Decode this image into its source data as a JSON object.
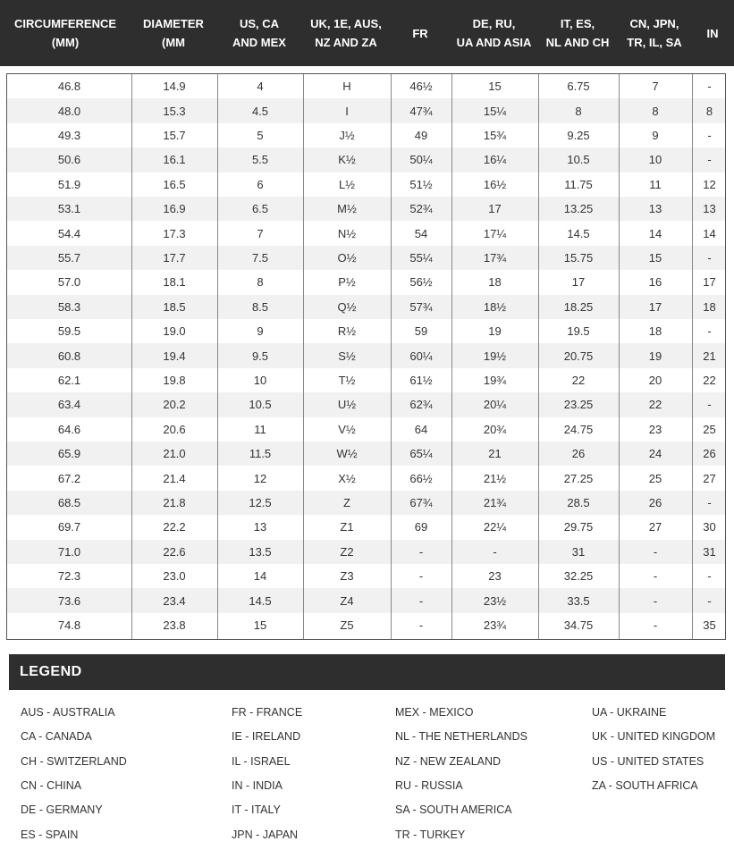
{
  "headers": [
    "CIRCUMFERENCE\n(MM)",
    "DIAMETER\n(MM",
    "US, CA\nAND MEX",
    "UK, 1E, AUS,\nNZ AND ZA",
    "FR",
    "DE, RU,\nUA AND ASIA",
    "IT, ES,\nNL AND CH",
    "CN, JPN,\nTR, IL, SA",
    "IN"
  ],
  "rows": [
    [
      "46.8",
      "14.9",
      "4",
      "H",
      "46½",
      "15",
      "6.75",
      "7",
      "-"
    ],
    [
      "48.0",
      "15.3",
      "4.5",
      "I",
      "47¾",
      "15¼",
      "8",
      "8",
      "8"
    ],
    [
      "49.3",
      "15.7",
      "5",
      "J½",
      "49",
      "15¾",
      "9.25",
      "9",
      "-"
    ],
    [
      "50.6",
      "16.1",
      "5.5",
      "K½",
      "50¼",
      "16¼",
      "10.5",
      "10",
      "-"
    ],
    [
      "51.9",
      "16.5",
      "6",
      "L½",
      "51½",
      "16½",
      "11.75",
      "11",
      "12"
    ],
    [
      "53.1",
      "16.9",
      "6.5",
      "M½",
      "52¾",
      "17",
      "13.25",
      "13",
      "13"
    ],
    [
      "54.4",
      "17.3",
      "7",
      "N½",
      "54",
      "17¼",
      "14.5",
      "14",
      "14"
    ],
    [
      "55.7",
      "17.7",
      "7.5",
      "O½",
      "55¼",
      "17¾",
      "15.75",
      "15",
      "-"
    ],
    [
      "57.0",
      "18.1",
      "8",
      "P½",
      "56½",
      "18",
      "17",
      "16",
      "17"
    ],
    [
      "58.3",
      "18.5",
      "8.5",
      "Q½",
      "57¾",
      "18½",
      "18.25",
      "17",
      "18"
    ],
    [
      "59.5",
      "19.0",
      "9",
      "R½",
      "59",
      "19",
      "19.5",
      "18",
      "-"
    ],
    [
      "60.8",
      "19.4",
      "9.5",
      "S½",
      "60¼",
      "19½",
      "20.75",
      "19",
      "21"
    ],
    [
      "62.1",
      "19.8",
      "10",
      "T½",
      "61½",
      "19¾",
      "22",
      "20",
      "22"
    ],
    [
      "63.4",
      "20.2",
      "10.5",
      "U½",
      "62¾",
      "20¼",
      "23.25",
      "22",
      "-"
    ],
    [
      "64.6",
      "20.6",
      "11",
      "V½",
      "64",
      "20¾",
      "24.75",
      "23",
      "25"
    ],
    [
      "65.9",
      "21.0",
      "11.5",
      "W½",
      "65¼",
      "21",
      "26",
      "24",
      "26"
    ],
    [
      "67.2",
      "21.4",
      "12",
      "X½",
      "66½",
      "21½",
      "27.25",
      "25",
      "27"
    ],
    [
      "68.5",
      "21.8",
      "12.5",
      "Z",
      "67¾",
      "21¾",
      "28.5",
      "26",
      "-"
    ],
    [
      "69.7",
      "22.2",
      "13",
      "Z1",
      "69",
      "22¼",
      "29.75",
      "27",
      "30"
    ],
    [
      "71.0",
      "22.6",
      "13.5",
      "Z2",
      "-",
      "-",
      "31",
      "-",
      "31"
    ],
    [
      "72.3",
      "23.0",
      "14",
      "Z3",
      "-",
      "23",
      "32.25",
      "-",
      "-"
    ],
    [
      "73.6",
      "23.4",
      "14.5",
      "Z4",
      "-",
      "23½",
      "33.5",
      "-",
      "-"
    ],
    [
      "74.8",
      "23.8",
      "15",
      "Z5",
      "-",
      "23¾",
      "34.75",
      "-",
      "35"
    ]
  ],
  "legend": {
    "title": "LEGEND",
    "columns": [
      [
        "AUS - AUSTRALIA",
        "CA - CANADA",
        "CH - SWITZERLAND",
        "CN - CHINA",
        "DE - GERMANY",
        "ES - SPAIN"
      ],
      [
        "FR - FRANCE",
        "IE - IRELAND",
        "IL - ISRAEL",
        "IN - INDIA",
        "IT - ITALY",
        "JPN - JAPAN"
      ],
      [
        "MEX - MEXICO",
        "NL - THE NETHERLANDS",
        "NZ - NEW ZEALAND",
        "RU - RUSSIA",
        "SA - SOUTH AMERICA",
        "TR - TURKEY"
      ],
      [
        "UA - UKRAINE",
        "UK - UNITED KINGDOM",
        "US - UNITED STATES",
        "ZA - SOUTH AFRICA"
      ]
    ]
  }
}
